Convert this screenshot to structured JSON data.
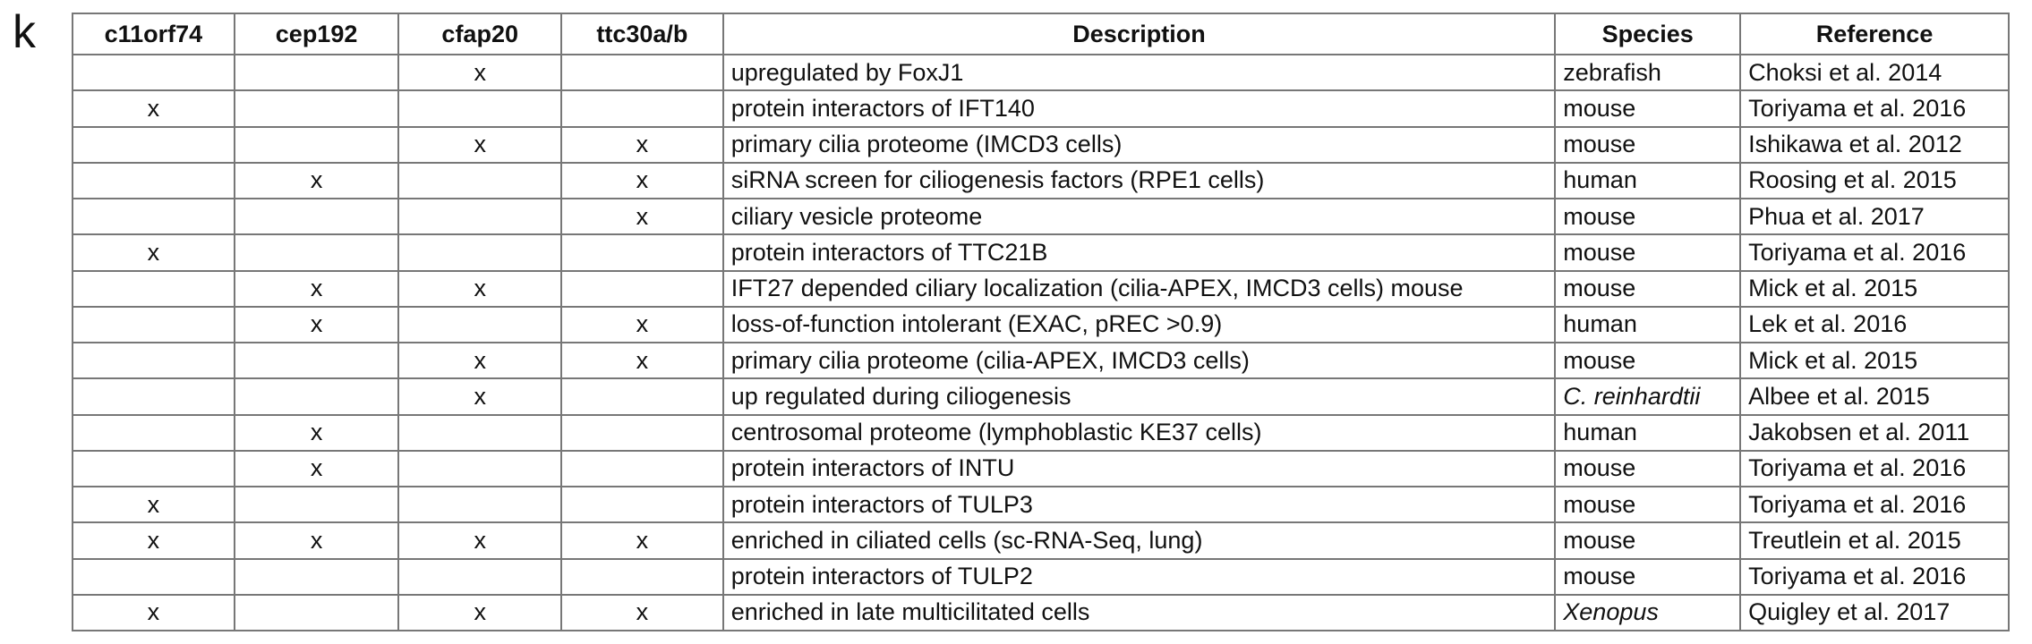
{
  "panel_label": "k",
  "table": {
    "header": [
      "c11orf74",
      "cep192",
      "cfap20",
      "ttc30a/b",
      "Description",
      "Species",
      "Reference"
    ],
    "rows": [
      [
        null,
        null,
        "x",
        null,
        "upregulated by FoxJ1",
        "zebrafish",
        "Choksi et al. 2014"
      ],
      [
        "x",
        null,
        null,
        null,
        "protein interactors of IFT140",
        "mouse",
        "Toriyama et al. 2016"
      ],
      [
        null,
        null,
        "x",
        "x",
        "primary cilia proteome (IMCD3 cells)",
        "mouse",
        "Ishikawa et al. 2012"
      ],
      [
        null,
        "x",
        null,
        "x",
        "siRNA screen for ciliogenesis factors (RPE1 cells)",
        "human",
        "Roosing et al. 2015"
      ],
      [
        null,
        null,
        null,
        "x",
        "ciliary vesicle proteome",
        "mouse",
        "Phua et al. 2017"
      ],
      [
        "x",
        null,
        null,
        null,
        "protein interactors of TTC21B",
        "mouse",
        "Toriyama et al. 2016"
      ],
      [
        null,
        "x",
        "x",
        null,
        "IFT27 depended ciliary localization (cilia-APEX, IMCD3 cells) mouse",
        "mouse",
        "Mick et al. 2015"
      ],
      [
        null,
        "x",
        null,
        "x",
        "loss-of-function intolerant (EXAC, pREC >0.9)",
        "human",
        "Lek et al. 2016"
      ],
      [
        null,
        null,
        "x",
        "x",
        "primary cilia proteome (cilia-APEX, IMCD3 cells)",
        "mouse",
        "Mick et al. 2015"
      ],
      [
        null,
        null,
        "x",
        null,
        "up regulated during ciliogenesis",
        "C. reinhardtii",
        "Albee et al. 2015"
      ],
      [
        null,
        "x",
        null,
        null,
        "centrosomal proteome (lymphoblastic KE37 cells)",
        "human",
        "Jakobsen et al. 2011"
      ],
      [
        null,
        "x",
        null,
        null,
        "protein interactors of INTU",
        "mouse",
        "Toriyama et al. 2016"
      ],
      [
        "x",
        null,
        null,
        null,
        "protein interactors of TULP3",
        "mouse",
        "Toriyama et al. 2016"
      ],
      [
        "x",
        "x",
        "x",
        "x",
        "enriched in ciliated cells (sc-RNA-Seq, lung)",
        "mouse",
        "Treutlein et al. 2015"
      ],
      [
        null,
        null,
        null,
        null,
        "protein interactors of TULP2",
        "mouse",
        "Toriyama et al. 2016"
      ],
      [
        "x",
        null,
        "x",
        "x",
        "enriched in late multicilitated cells",
        "Xenopus",
        "Quigley et al. 2017"
      ]
    ]
  }
}
